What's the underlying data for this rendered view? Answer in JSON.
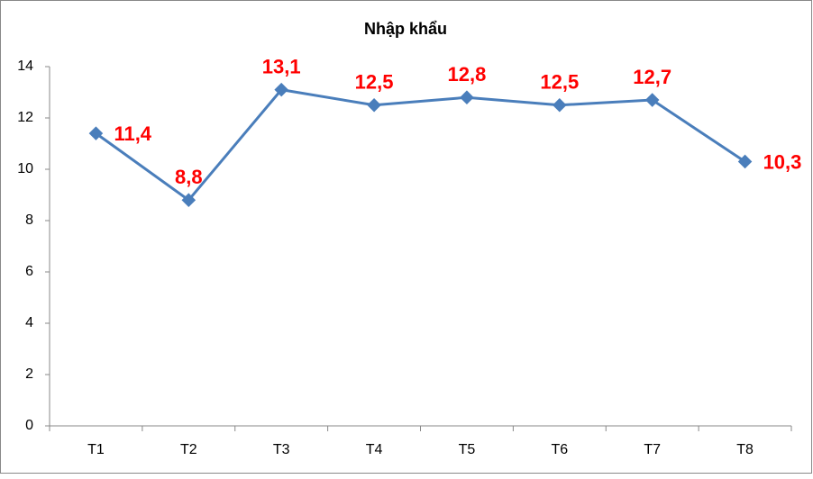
{
  "chart_data": {
    "type": "line",
    "title": "Nhập khẩu",
    "categories": [
      "T1",
      "T2",
      "T3",
      "T4",
      "T5",
      "T6",
      "T7",
      "T8"
    ],
    "series": [
      {
        "name": "Nhập khẩu",
        "color": "#4a7ebb",
        "values": [
          11.4,
          8.8,
          13.1,
          12.5,
          12.8,
          12.5,
          12.7,
          10.3
        ],
        "value_labels": [
          "11,4",
          "8,8",
          "13,1",
          "12,5",
          "12,8",
          "12,5",
          "12,7",
          "10,3"
        ]
      }
    ],
    "value_label_color": "#ff0000",
    "ylim": [
      0,
      14
    ],
    "yticks": [
      0,
      2,
      4,
      6,
      8,
      10,
      12,
      14
    ],
    "grid": false,
    "legend": false
  }
}
